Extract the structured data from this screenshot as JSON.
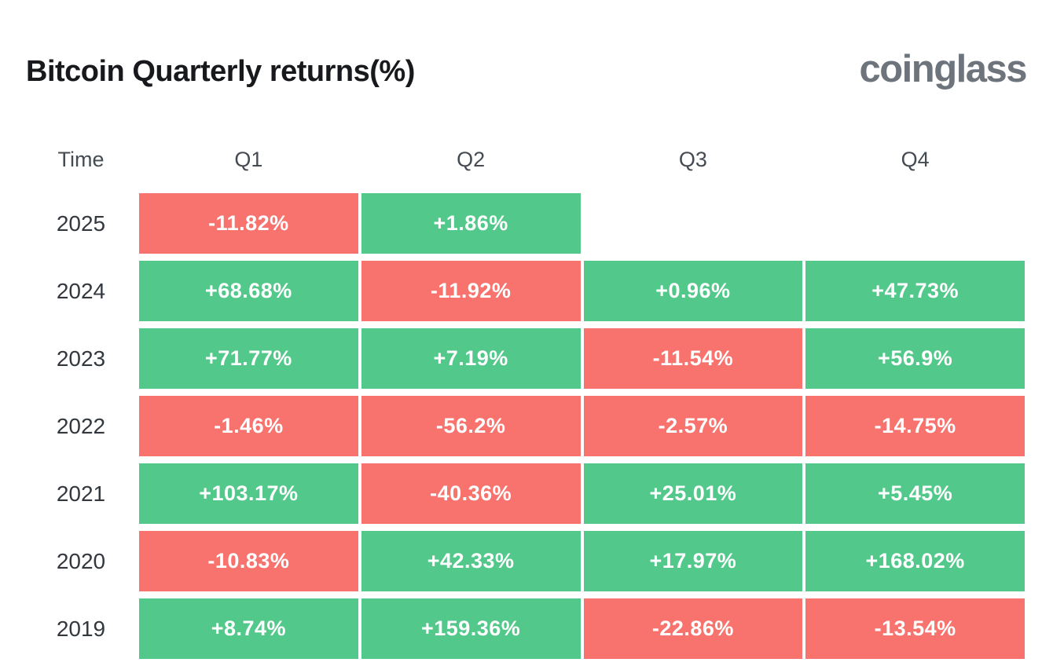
{
  "title": "Bitcoin Quarterly returns(%)",
  "logo_text": "coinglass",
  "table": {
    "columns": [
      "Time",
      "Q1",
      "Q2",
      "Q3",
      "Q4"
    ],
    "rows": [
      {
        "year": "2025",
        "cells": [
          "-11.82%",
          "+1.86%",
          "",
          ""
        ]
      },
      {
        "year": "2024",
        "cells": [
          "+68.68%",
          "-11.92%",
          "+0.96%",
          "+47.73%"
        ]
      },
      {
        "year": "2023",
        "cells": [
          "+71.77%",
          "+7.19%",
          "-11.54%",
          "+56.9%"
        ]
      },
      {
        "year": "2022",
        "cells": [
          "-1.46%",
          "-56.2%",
          "-2.57%",
          "-14.75%"
        ]
      },
      {
        "year": "2021",
        "cells": [
          "+103.17%",
          "-40.36%",
          "+25.01%",
          "+5.45%"
        ]
      },
      {
        "year": "2020",
        "cells": [
          "-10.83%",
          "+42.33%",
          "+17.97%",
          "+168.02%"
        ]
      },
      {
        "year": "2019",
        "cells": [
          "+8.74%",
          "+159.36%",
          "-22.86%",
          "-13.54%"
        ]
      }
    ]
  },
  "colors": {
    "positive": "#52c98b",
    "negative": "#f8736e",
    "title_text": "#17191d",
    "logo_text": "#6e747c",
    "cell_text": "#ffffff"
  },
  "chart_data": {
    "type": "heatmap",
    "title": "Bitcoin Quarterly returns(%)",
    "columns": [
      "Q1",
      "Q2",
      "Q3",
      "Q4"
    ],
    "rows": [
      "2025",
      "2024",
      "2023",
      "2022",
      "2021",
      "2020",
      "2019"
    ],
    "values": [
      [
        -11.82,
        1.86,
        null,
        null
      ],
      [
        68.68,
        -11.92,
        0.96,
        47.73
      ],
      [
        71.77,
        7.19,
        -11.54,
        56.9
      ],
      [
        -1.46,
        -56.2,
        -2.57,
        -14.75
      ],
      [
        103.17,
        -40.36,
        25.01,
        5.45
      ],
      [
        -10.83,
        42.33,
        17.97,
        168.02
      ],
      [
        8.74,
        159.36,
        -22.86,
        -13.54
      ]
    ],
    "unit": "%",
    "positive_color": "#52c98b",
    "negative_color": "#f8736e",
    "legend": "green = positive quarterly return, red = negative quarterly return"
  }
}
